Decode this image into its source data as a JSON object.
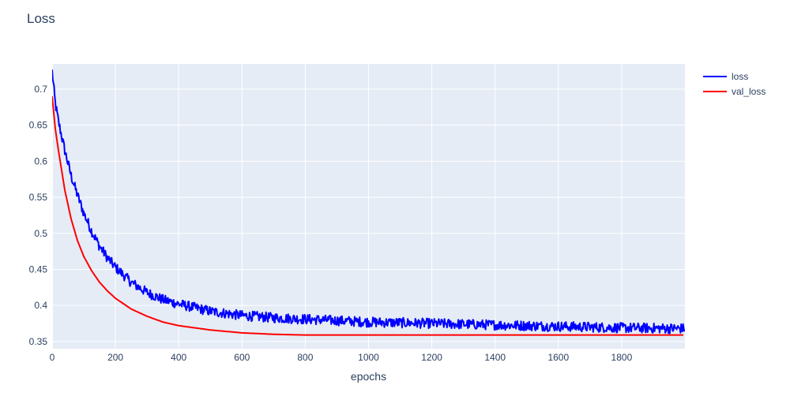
{
  "chart_data": {
    "type": "line",
    "title": "Loss",
    "xlabel": "epochs",
    "ylabel": "",
    "xlim": [
      0,
      2000
    ],
    "ylim": [
      0.34,
      0.735
    ],
    "xticks": [
      0,
      200,
      400,
      600,
      800,
      1000,
      1200,
      1400,
      1600,
      1800
    ],
    "xtick_labels": [
      "0",
      "200",
      "400",
      "600",
      "800",
      "1000",
      "1200",
      "1400",
      "1600",
      "1800"
    ],
    "yticks": [
      0.35,
      0.4,
      0.45,
      0.5,
      0.55,
      0.6,
      0.65,
      0.7
    ],
    "ytick_labels": [
      "0.35",
      "0.4",
      "0.45",
      "0.5",
      "0.55",
      "0.6",
      "0.65",
      "0.7"
    ],
    "grid": true,
    "legend_position": "top-right",
    "plot_background": "#e5ecf6",
    "series": [
      {
        "name": "loss",
        "color": "#0000ff",
        "noise": "high-frequency jitter about +/-0.007",
        "x": [
          0,
          10,
          20,
          40,
          60,
          80,
          100,
          125,
          150,
          175,
          200,
          250,
          300,
          350,
          400,
          500,
          600,
          700,
          800,
          900,
          1000,
          1200,
          1400,
          1600,
          1800,
          1999
        ],
        "y": [
          0.725,
          0.68,
          0.655,
          0.615,
          0.58,
          0.553,
          0.528,
          0.503,
          0.482,
          0.466,
          0.453,
          0.432,
          0.418,
          0.408,
          0.402,
          0.392,
          0.386,
          0.383,
          0.381,
          0.379,
          0.377,
          0.375,
          0.373,
          0.371,
          0.369,
          0.368
        ]
      },
      {
        "name": "val_loss",
        "color": "#ff0000",
        "x": [
          0,
          10,
          20,
          40,
          60,
          80,
          100,
          125,
          150,
          175,
          200,
          250,
          300,
          350,
          400,
          500,
          600,
          700,
          800,
          900,
          1000,
          1200,
          1400,
          1600,
          1800,
          1999
        ],
        "y": [
          0.69,
          0.645,
          0.615,
          0.56,
          0.52,
          0.49,
          0.468,
          0.448,
          0.432,
          0.42,
          0.41,
          0.395,
          0.385,
          0.377,
          0.372,
          0.366,
          0.362,
          0.36,
          0.359,
          0.359,
          0.359,
          0.359,
          0.359,
          0.359,
          0.359,
          0.359
        ]
      }
    ]
  }
}
